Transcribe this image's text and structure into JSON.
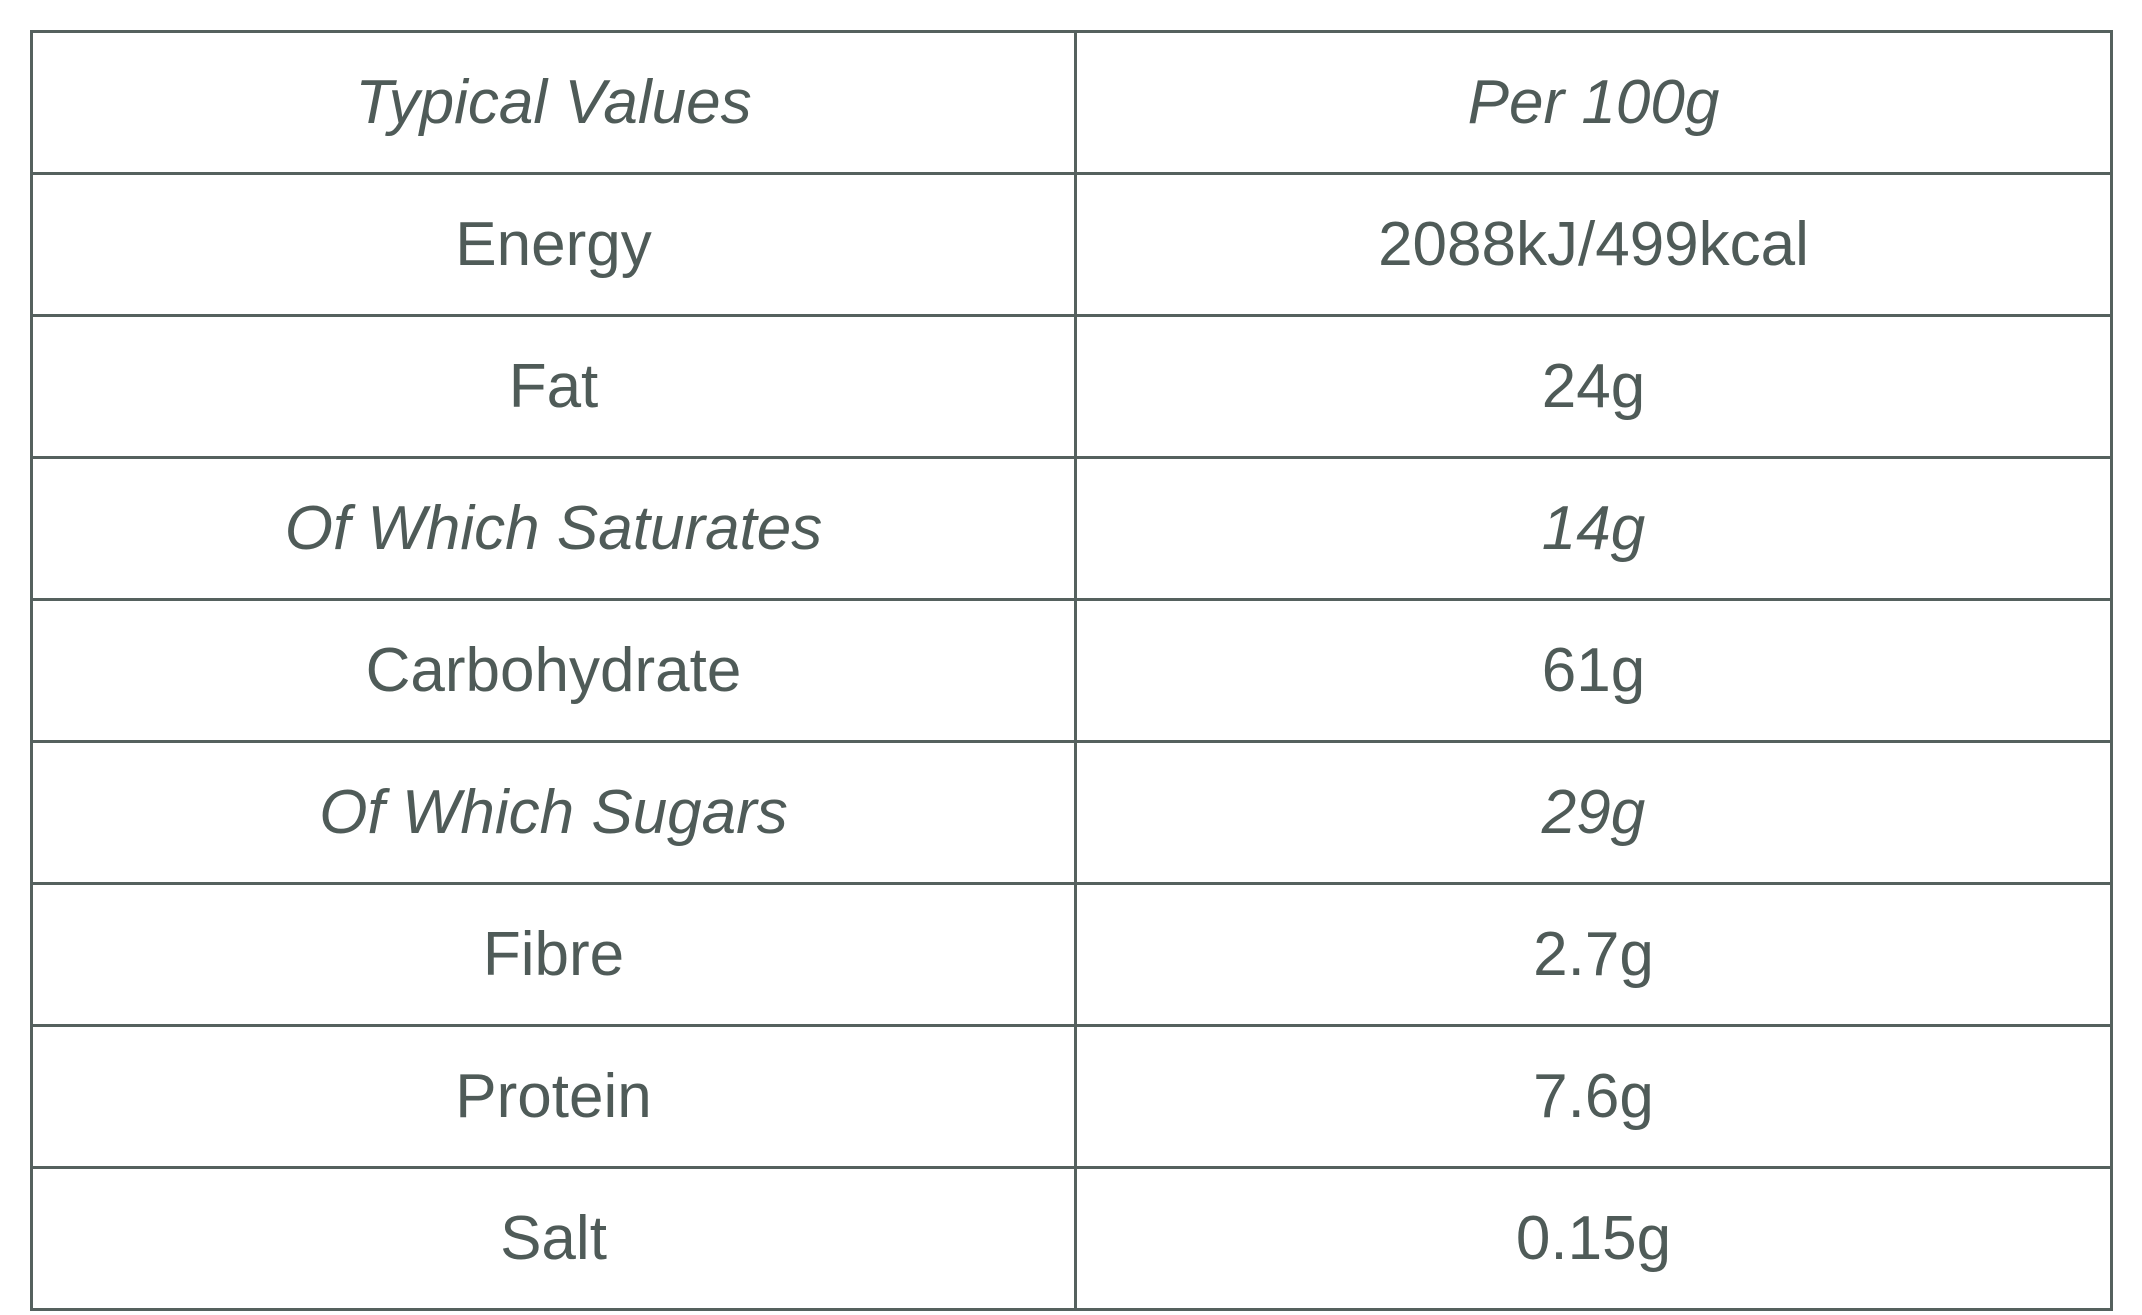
{
  "table": {
    "header": [
      "Typical Values",
      "Per 100g"
    ],
    "rows": [
      [
        "Energy",
        "2088kJ/499kcal"
      ],
      [
        "Fat",
        "24g"
      ],
      [
        "Of Which Saturates",
        "14g"
      ],
      [
        "Carbohydrate",
        "61g"
      ],
      [
        "Of Which Sugars",
        "29g"
      ],
      [
        "Fibre",
        "2.7g"
      ],
      [
        "Protein",
        "7.6g"
      ],
      [
        "Salt",
        "0.15g"
      ]
    ]
  }
}
